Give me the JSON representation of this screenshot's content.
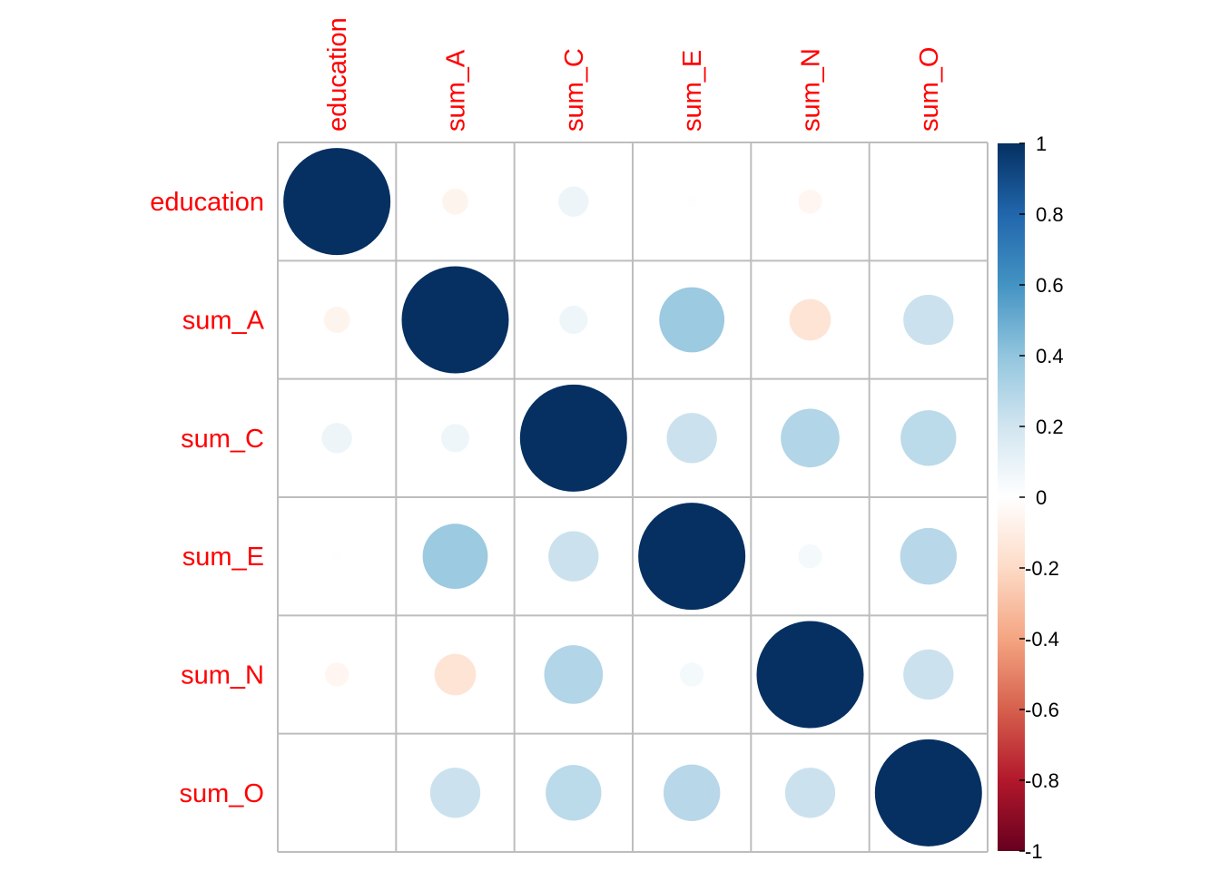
{
  "chart_data": {
    "type": "heatmap",
    "title": "",
    "variables": [
      "education",
      "sum_A",
      "sum_C",
      "sum_E",
      "sum_N",
      "sum_O"
    ],
    "matrix": [
      [
        1.0,
        -0.06,
        0.08,
        0.01,
        -0.05,
        0.0
      ],
      [
        -0.06,
        1.0,
        0.07,
        0.37,
        -0.15,
        0.22
      ],
      [
        0.08,
        0.07,
        1.0,
        0.22,
        0.3,
        0.27
      ],
      [
        0.01,
        0.37,
        0.22,
        1.0,
        0.05,
        0.28
      ],
      [
        -0.05,
        -0.15,
        0.3,
        0.05,
        1.0,
        0.22
      ],
      [
        0.0,
        0.22,
        0.27,
        0.28,
        0.22,
        1.0
      ]
    ],
    "colorbar": {
      "range": [
        -1,
        1
      ],
      "ticks": [
        1,
        0.8,
        0.6,
        0.4,
        0.2,
        0,
        -0.2,
        -0.4,
        -0.6,
        -0.8,
        -1
      ],
      "tick_labels": [
        "1",
        "0.8",
        "0.6",
        "0.4",
        "0.2",
        "0",
        "-0.2",
        "-0.4",
        "-0.6",
        "-0.8",
        "-1"
      ],
      "colors": [
        "#67001F",
        "#B2182B",
        "#D6604D",
        "#F4A582",
        "#FDDBC7",
        "#FFFFFF",
        "#D1E5F0",
        "#92C5DE",
        "#4393C3",
        "#2166AC",
        "#053061"
      ]
    },
    "label_color": "#ff0000",
    "grid_color": "#bdbdbd"
  }
}
